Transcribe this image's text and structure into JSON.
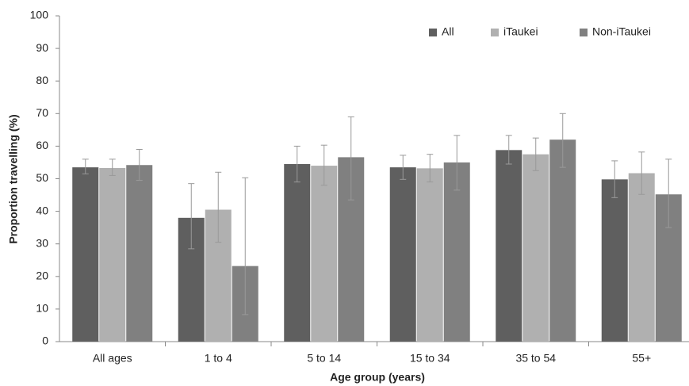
{
  "chart_data": {
    "type": "bar",
    "x_label": "Age group  (years)",
    "y_label": "Proportion travelling (%)",
    "categories": [
      "All ages",
      "1 to 4",
      "5 to 14",
      "15 to 34",
      "35 to 54",
      "55+"
    ],
    "series": [
      {
        "name": "All",
        "color": "#5f5f5f",
        "values": [
          53.5,
          38,
          54.5,
          53.5,
          58.8,
          49.8
        ],
        "lower": [
          51.5,
          28.5,
          49,
          49.8,
          54.5,
          44.2
        ],
        "upper": [
          56,
          48.5,
          60,
          57.2,
          63.3,
          55.5
        ]
      },
      {
        "name": "iTaukei",
        "color": "#b0b0b0",
        "values": [
          53.3,
          40.5,
          54,
          53.2,
          57.5,
          51.7
        ],
        "lower": [
          51,
          30.5,
          48,
          49,
          52.5,
          45.2
        ],
        "upper": [
          56,
          52,
          60.3,
          57.5,
          62.5,
          58.2
        ]
      },
      {
        "name": "Non-iTaukei",
        "color": "#808080",
        "values": [
          54.2,
          23.2,
          56.6,
          55,
          62,
          45.2
        ],
        "lower": [
          49.5,
          8.3,
          43.5,
          46.5,
          53.5,
          35
        ],
        "upper": [
          59,
          50.3,
          69,
          63.3,
          70,
          56
        ]
      }
    ],
    "ylim": [
      0,
      100
    ],
    "yticks": [
      0,
      10,
      20,
      30,
      40,
      50,
      60,
      70,
      80,
      90,
      100
    ],
    "grid": false,
    "legend": "top-right"
  }
}
